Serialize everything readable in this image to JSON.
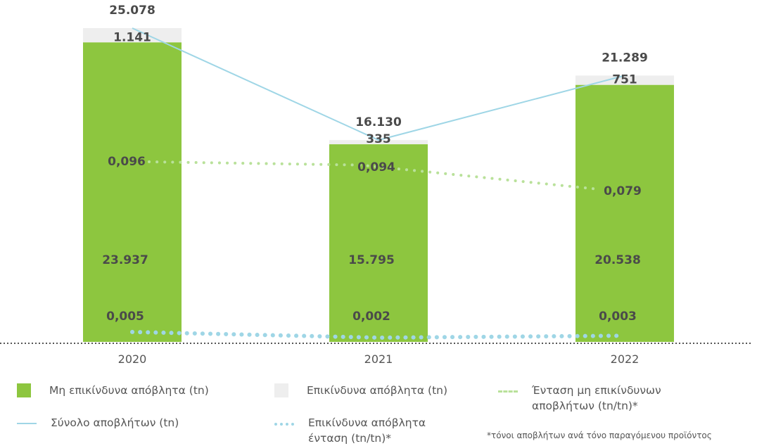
{
  "chart_data": {
    "type": "bar",
    "categories": [
      "2020",
      "2021",
      "2022"
    ],
    "series": [
      {
        "name": "Μη επικίνδυνα απόβλητα (tn)",
        "kind": "bar",
        "color": "#8dc63f",
        "values": [
          23937,
          15795,
          20538
        ],
        "labels": [
          "23.937",
          "15.795",
          "20.538"
        ]
      },
      {
        "name": "Επικίνδυνα απόβλητα (tn)",
        "kind": "bar",
        "color": "#eeeeee",
        "values": [
          1141,
          335,
          751
        ],
        "labels": [
          "1.141",
          "335",
          "751"
        ]
      },
      {
        "name": "Σύνολο αποβλήτων (tn)",
        "kind": "line",
        "color": "#9fd6e6",
        "values": [
          25078,
          16130,
          21289
        ],
        "labels": [
          "25.078",
          "16.130",
          "21.289"
        ]
      },
      {
        "name": "Ένταση μη επικίνδυνων αποβλήτων (tn/tn)*",
        "kind": "dotted-line",
        "color": "#b9e19a",
        "values": [
          0.096,
          0.094,
          0.079
        ],
        "labels": [
          "0,096",
          "0,094",
          "0,079"
        ]
      },
      {
        "name": "Επικίνδυνα απόβλητα ένταση (tn/tn)*",
        "kind": "dotted-line",
        "color": "#9fd6e6",
        "values": [
          0.005,
          0.002,
          0.003
        ],
        "labels": [
          "0,005",
          "0,002",
          "0,003"
        ]
      }
    ],
    "ylim": [
      0,
      26500
    ],
    "grid": false,
    "legend_position": "bottom"
  },
  "legend": [
    {
      "label": "Μη επικίνδυνα απόβλητα (tn)",
      "swatch": "box",
      "color": "#8dc63f"
    },
    {
      "label": "Επικίνδυνα απόβλητα (tn)",
      "swatch": "box",
      "color": "#eeeeee"
    },
    {
      "label": "Ένταση μη επικίνδυνων\nαποβλήτων (tn/tn)*",
      "swatch": "dash",
      "color": "#b9e19a"
    },
    {
      "label": "Σύνολο αποβλήτων (tn)",
      "swatch": "line",
      "color": "#9fd6e6"
    },
    {
      "label": "Επικίνδυνα απόβλητα\nένταση (tn/tn)*",
      "swatch": "dots",
      "color": "#9fd6e6"
    }
  ],
  "footnote": "*τόνοι αποβλήτων ανά τόνο παραγόμενου προϊόντος"
}
